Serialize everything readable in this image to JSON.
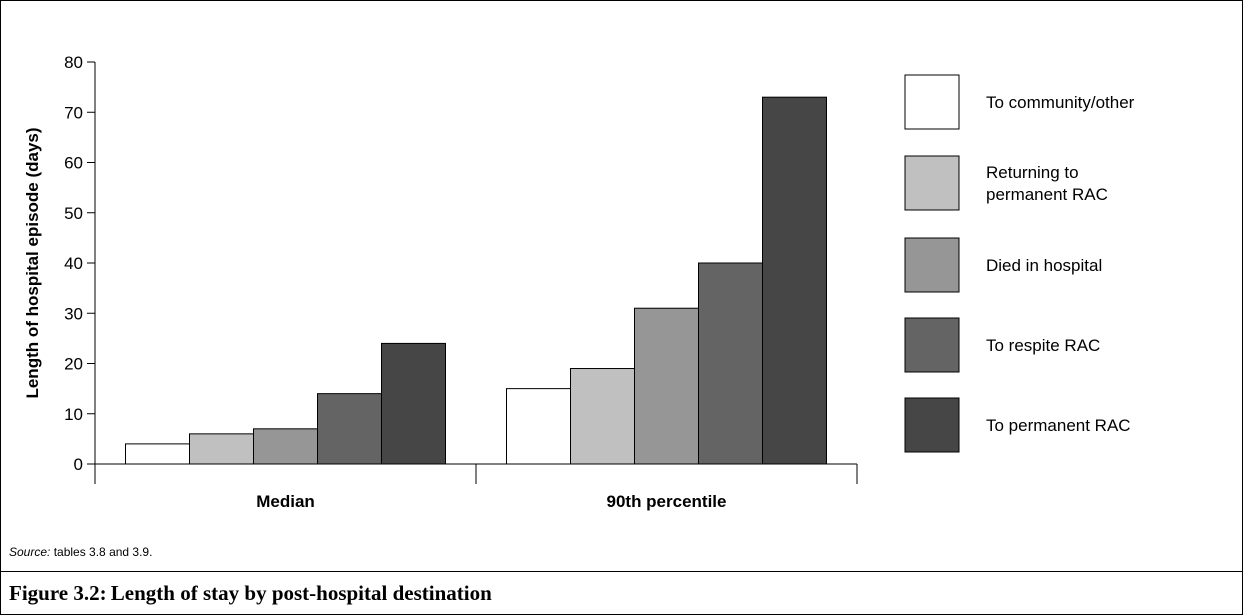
{
  "chart_data": {
    "type": "bar",
    "categories": [
      "Median",
      "90th percentile"
    ],
    "series": [
      {
        "name": "To community/other",
        "values": [
          4,
          15
        ],
        "color": "#ffffff"
      },
      {
        "name": "Returning to permanent RAC",
        "values": [
          6,
          19
        ],
        "color": "#c0c0c0"
      },
      {
        "name": "Died in hospital",
        "values": [
          7,
          31
        ],
        "color": "#969696"
      },
      {
        "name": "To respite RAC",
        "values": [
          14,
          40
        ],
        "color": "#646464"
      },
      {
        "name": "To permanent RAC",
        "values": [
          24,
          73
        ],
        "color": "#464646"
      }
    ],
    "ylabel": "Length of hospital episode (days)",
    "xlabel": "",
    "ylim": [
      0,
      80
    ],
    "yticks": [
      0,
      10,
      20,
      30,
      40,
      50,
      60,
      70,
      80
    ],
    "grid": false,
    "legend_position": "right"
  },
  "legend_lines": [
    [
      "To community/other"
    ],
    [
      "Returning to",
      "permanent RAC"
    ],
    [
      "Died in hospital"
    ],
    [
      "To respite RAC"
    ],
    [
      "To permanent RAC"
    ]
  ],
  "source": {
    "label": "Source:",
    "text": " tables 3.8 and 3.9."
  },
  "figure_title": "Figure 3.2: Length of stay by post-hospital destination"
}
